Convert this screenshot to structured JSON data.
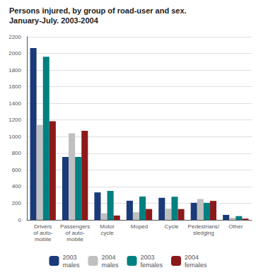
{
  "chart_data": {
    "type": "bar",
    "title": "Persons injured, by group of road-user and sex.",
    "subtitle": "January-July. 2003-2004",
    "categories": [
      "Drivers\nof auto-\nmobile",
      "Passengers\nof auto-\nmobile",
      "Motor\ncycle",
      "Moped",
      "Cycle",
      "Pedestrians/\nsledging",
      "Other"
    ],
    "series": [
      {
        "name": "2003\nmales",
        "color": "#1a3a7a",
        "values": [
          2065,
          755,
          330,
          230,
          265,
          205,
          60
        ]
      },
      {
        "name": "2004\nmales",
        "color": "#c0c0c0",
        "values": [
          1140,
          1040,
          80,
          92,
          135,
          250,
          25
        ]
      },
      {
        "name": "2003\nfemales",
        "color": "#008080",
        "values": [
          1960,
          755,
          348,
          280,
          278,
          205,
          45
        ]
      },
      {
        "name": "2004\nfemales",
        "color": "#8b1a1a",
        "values": [
          1185,
          1070,
          52,
          130,
          130,
          228,
          15
        ]
      }
    ],
    "ylim": [
      0,
      2200
    ],
    "yticks": [
      0,
      200,
      400,
      600,
      800,
      1000,
      1200,
      1400,
      1600,
      1800,
      2000,
      2200
    ],
    "grid": true,
    "legend": "bottom"
  }
}
